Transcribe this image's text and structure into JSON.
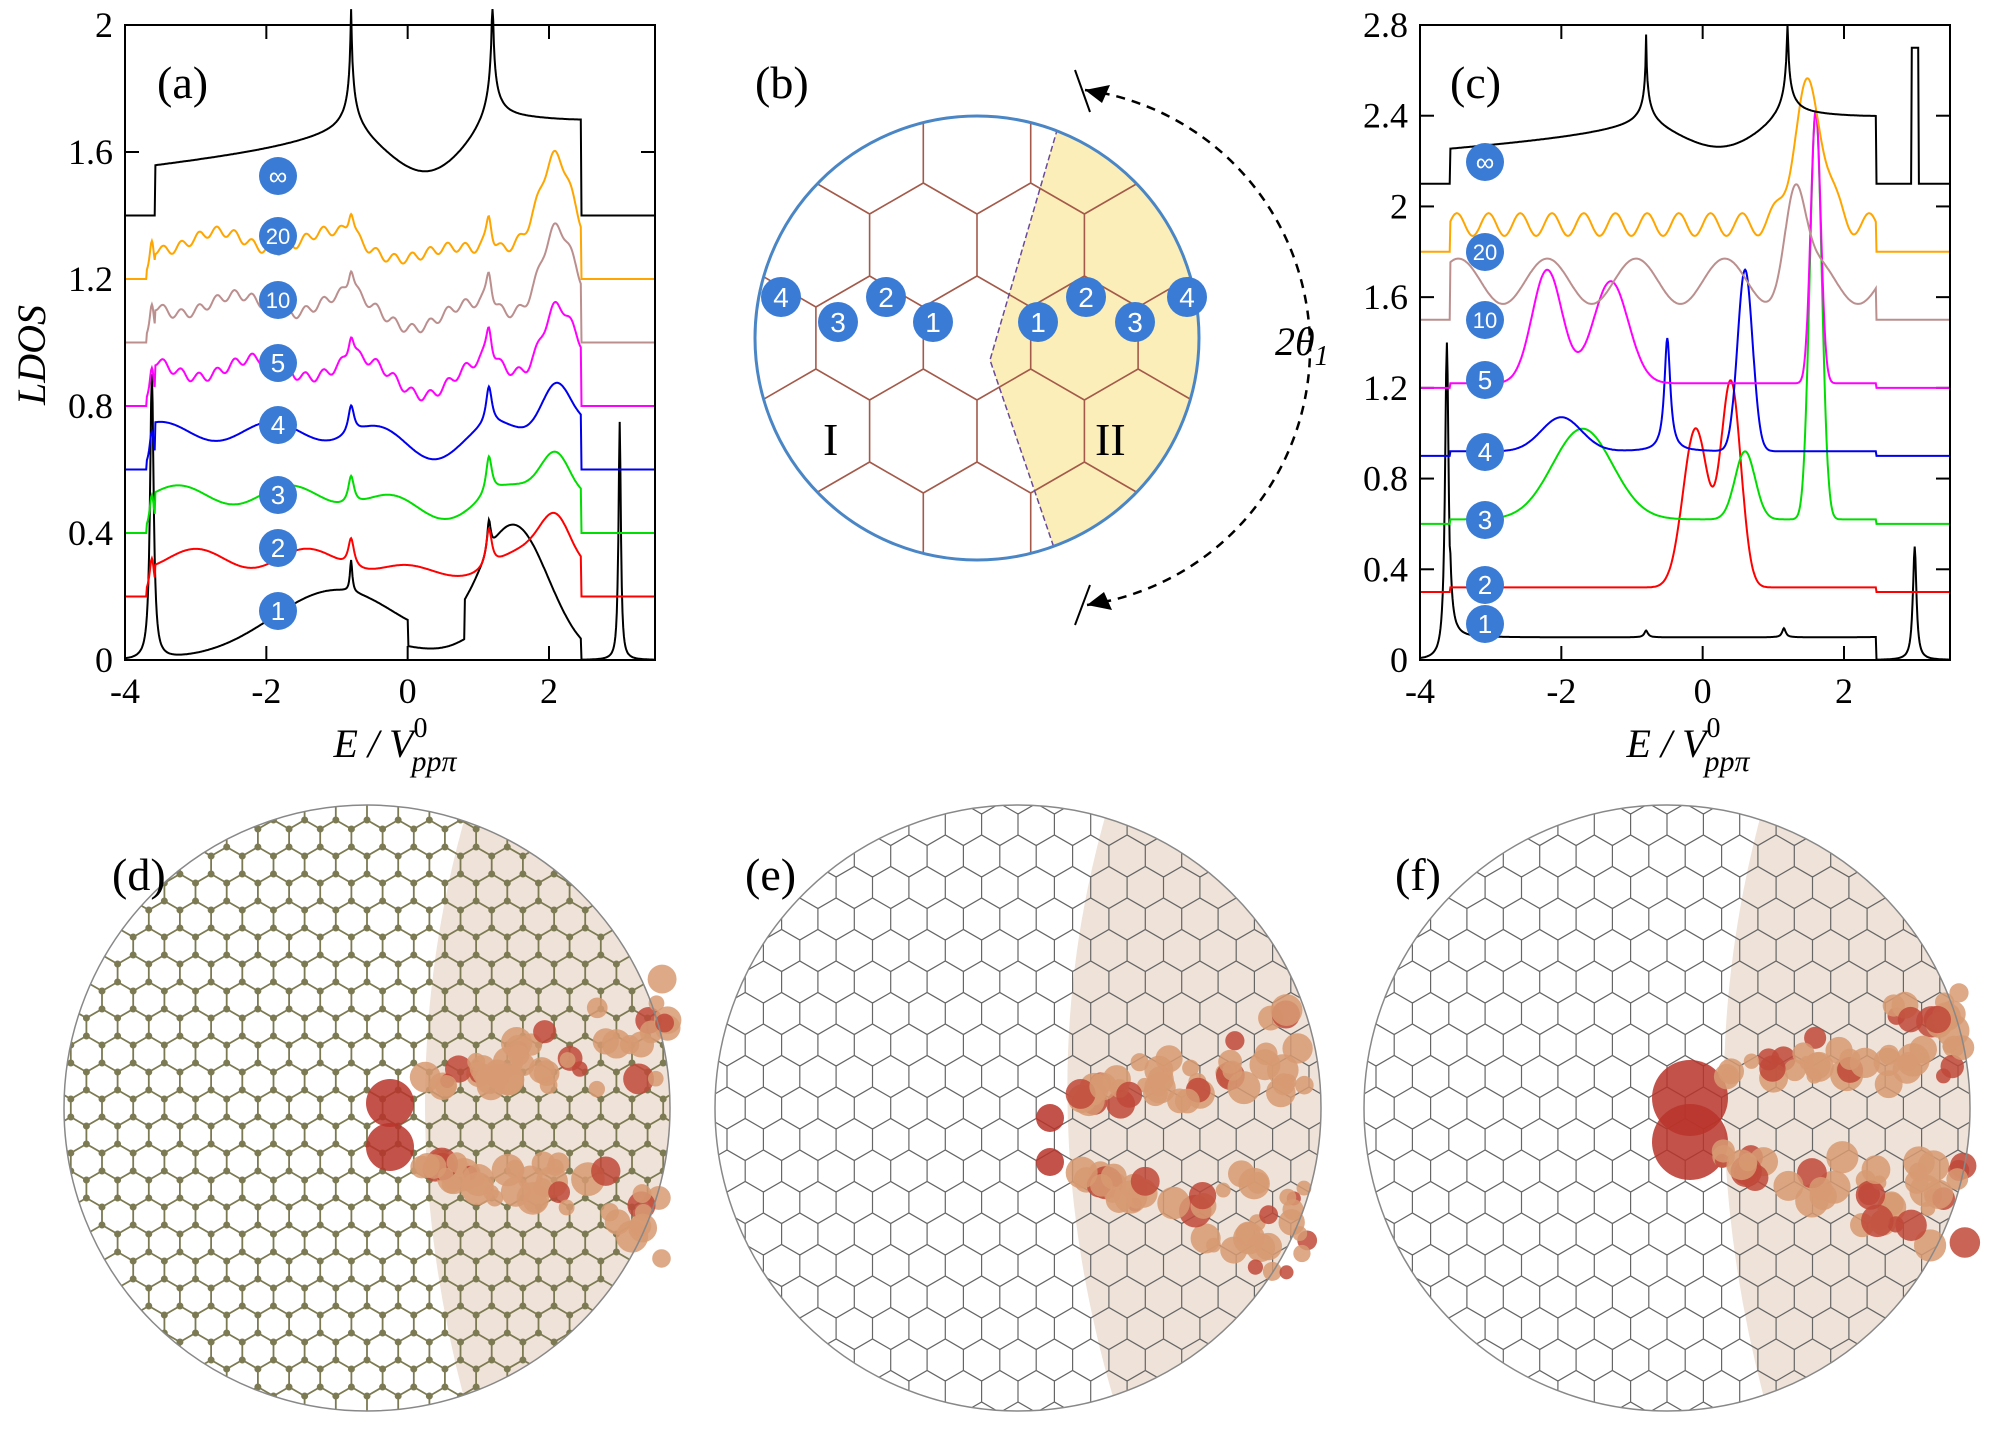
{
  "panel_labels": [
    "(a)",
    "(b)",
    "(c)",
    "(d)",
    "(e)",
    "(f)"
  ],
  "colors": {
    "site_bubble": "#3a7bd5",
    "circle_outline": "#4a86c5",
    "region_fill": "#fbeeb8",
    "lattice": "#a35a4a",
    "dot": "#7c7a52",
    "grain_fill": "#efe2d8",
    "weight_light": "#d79a72",
    "weight_dark": "#b8342a"
  },
  "chart_data": [
    {
      "type": "line",
      "panel": "(a)",
      "ylabel": "LDOS",
      "xlabel": "E / V",
      "xlabel_sup": "0",
      "xlabel_sub": "ppπ",
      "xlim": [
        -4,
        3.5
      ],
      "ylim": [
        0,
        2
      ],
      "xticks": [
        "-4",
        "-2",
        "0",
        "2"
      ],
      "yticks": [
        "0",
        "0.4",
        "0.8",
        "1.2",
        "1.6",
        "2"
      ],
      "series": [
        {
          "name": "1",
          "color": "#000000",
          "offset": 0.0
        },
        {
          "name": "2",
          "color": "#ff0000",
          "offset": 0.2
        },
        {
          "name": "3",
          "color": "#00dd00",
          "offset": 0.4
        },
        {
          "name": "4",
          "color": "#0000ee",
          "offset": 0.6
        },
        {
          "name": "5",
          "color": "#ff00ff",
          "offset": 0.8
        },
        {
          "name": "10",
          "color": "#bc8f8f",
          "offset": 1.0
        },
        {
          "name": "20",
          "color": "#ffa500",
          "offset": 1.2
        },
        {
          "name": "∞",
          "color": "#000000",
          "offset": 1.4
        }
      ]
    },
    {
      "type": "line",
      "panel": "(c)",
      "xlabel": "E / V",
      "xlabel_sup": "0",
      "xlabel_sub": "ppπ",
      "xlim": [
        -4,
        3.5
      ],
      "ylim": [
        0,
        2.8
      ],
      "xticks": [
        "-4",
        "-2",
        "0",
        "2"
      ],
      "yticks": [
        "0",
        "0.4",
        "0.8",
        "1.2",
        "1.6",
        "2",
        "2.4",
        "2.8"
      ],
      "series": [
        {
          "name": "1",
          "color": "#000000",
          "offset": 0.0
        },
        {
          "name": "2",
          "color": "#ff0000",
          "offset": 0.3
        },
        {
          "name": "3",
          "color": "#00dd00",
          "offset": 0.6
        },
        {
          "name": "4",
          "color": "#0000ee",
          "offset": 0.9
        },
        {
          "name": "5",
          "color": "#ff00ff",
          "offset": 1.2
        },
        {
          "name": "10",
          "color": "#bc8f8f",
          "offset": 1.5
        },
        {
          "name": "20",
          "color": "#ffa500",
          "offset": 1.8
        },
        {
          "name": "∞",
          "color": "#000000",
          "offset": 2.1
        }
      ]
    }
  ],
  "schematic": {
    "region_left": "I",
    "region_right": "II",
    "angle": "2θ",
    "angle_sub": "1",
    "left_sites": [
      "4",
      "3",
      "2",
      "1"
    ],
    "right_sites": [
      "1",
      "2",
      "3",
      "4"
    ]
  }
}
